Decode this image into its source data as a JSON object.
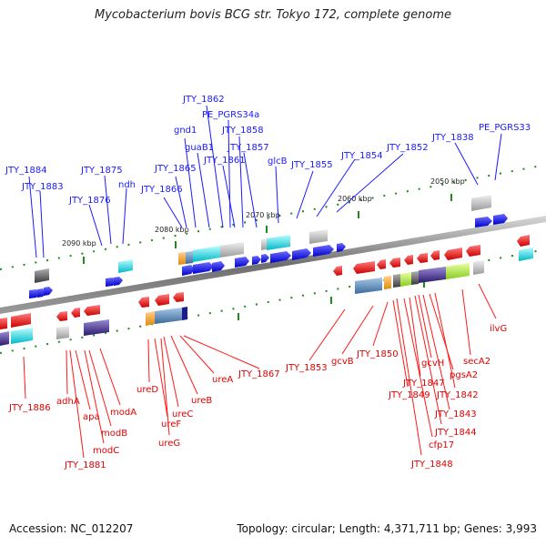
{
  "title": "Mycobacterium bovis BCG str. Tokyo 172, complete genome",
  "footer": {
    "accession": "Accession: NC_012207",
    "topology": "Topology: circular; Length: 4,371,711 bp; Genes: 3,993"
  },
  "colors": {
    "forward_strand": "#1a1aff",
    "reverse_strand": "#ff1a1a",
    "backbone": "#808080",
    "tick": "#1f8a1f"
  },
  "ticks": [
    "2090 kbp",
    "2080 kbp",
    "2070 kbp",
    "2060 kbp",
    "2050 kbp"
  ],
  "labels_forward": [
    "JTY_1884",
    "JTY_1883",
    "JTY_1876",
    "JTY_1875",
    "ndh",
    "JTY_1866",
    "JTY_1865",
    "gnd1",
    "guaB1",
    "JTY_1862",
    "PE_PGRS34a",
    "JTY_1861",
    "JTY_1858",
    "JTY_1857",
    "glcB",
    "JTY_1855",
    "JTY_1854",
    "JTY_1852",
    "JTY_1838",
    "PE_PGRS33"
  ],
  "labels_reverse": [
    "JTY_1886",
    "adhA",
    "apa",
    "JTY_1881",
    "modB",
    "modC",
    "modA",
    "ureD",
    "ureF",
    "ureG",
    "ureC",
    "ureB",
    "ureA",
    "JTY_1867",
    "JTY_1853",
    "gcvB",
    "JTY_1850",
    "JTY_1849",
    "JTY_1848",
    "cfp17",
    "JTY_1847",
    "JTY_1844",
    "gcvH",
    "JTY_1843",
    "pgsA2",
    "JTY_1842",
    "secA2",
    "ilvG"
  ]
}
